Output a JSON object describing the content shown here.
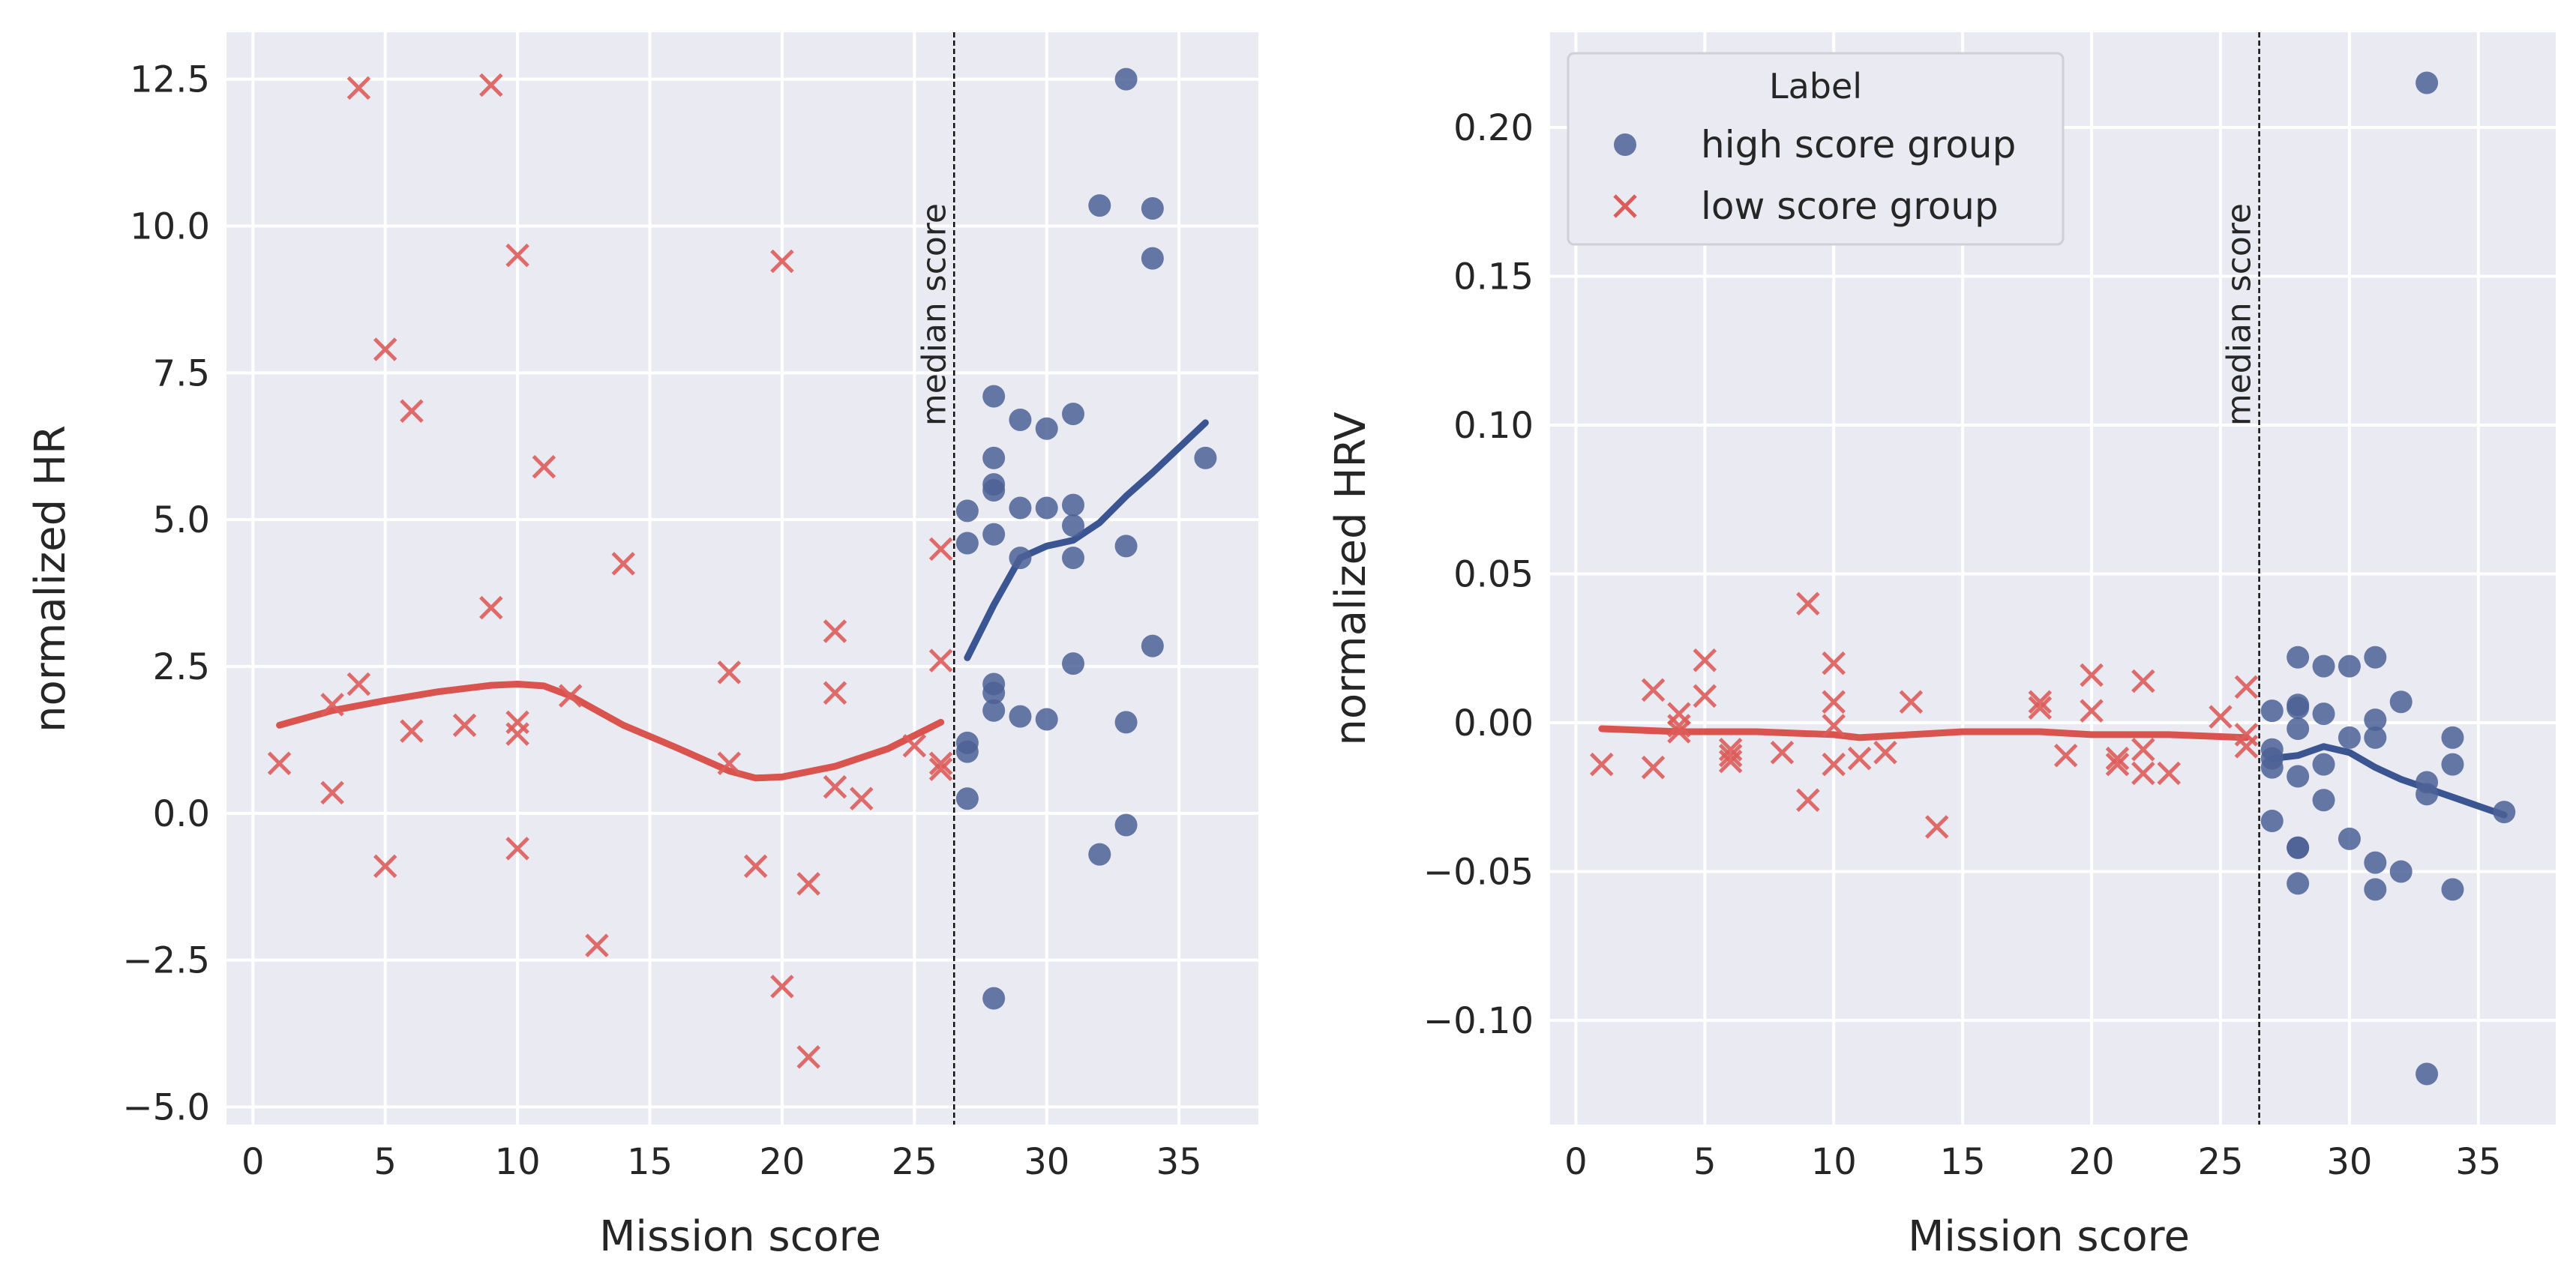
{
  "colors": {
    "background": "#eaeaf2",
    "grid": "#ffffff",
    "high": "#4c6296",
    "low": "#dd5c5a",
    "high_line": "#3a5592",
    "low_line": "#d9534f",
    "text": "#262626"
  },
  "legend": {
    "title": "Label",
    "entries": [
      {
        "name": "high score group",
        "marker": "circle"
      },
      {
        "name": "low score group",
        "marker": "x"
      }
    ]
  },
  "chart_data": [
    {
      "type": "scatter",
      "xlabel": "Mission score",
      "ylabel": "normalized HR",
      "xlim": [
        -1,
        38
      ],
      "ylim": [
        -5.3,
        13.3
      ],
      "xticks": [
        0,
        5,
        10,
        15,
        20,
        25,
        30,
        35
      ],
      "xtick_labels": [
        "0",
        "5",
        "10",
        "15",
        "20",
        "25",
        "30",
        "35"
      ],
      "yticks": [
        -5,
        -2.5,
        0,
        2.5,
        5,
        7.5,
        10,
        12.5
      ],
      "ytick_labels": [
        "−5.0",
        "−2.5",
        "0.0",
        "2.5",
        "5.0",
        "7.5",
        "10.0",
        "12.5"
      ],
      "median": {
        "x": 26.5,
        "label": "median score"
      },
      "series": [
        {
          "name": "low score group",
          "marker": "x",
          "points": [
            [
              1,
              0.85
            ],
            [
              3,
              0.35
            ],
            [
              3,
              1.85
            ],
            [
              4,
              2.2
            ],
            [
              4,
              12.35
            ],
            [
              5,
              7.9
            ],
            [
              5,
              -0.9
            ],
            [
              6,
              6.85
            ],
            [
              6,
              1.4
            ],
            [
              8,
              1.5
            ],
            [
              9,
              12.4
            ],
            [
              9,
              3.5
            ],
            [
              10,
              9.5
            ],
            [
              10,
              1.55
            ],
            [
              10,
              1.35
            ],
            [
              10,
              -0.6
            ],
            [
              11,
              5.9
            ],
            [
              12,
              2.0
            ],
            [
              13,
              -2.25
            ],
            [
              14,
              4.25
            ],
            [
              18,
              2.4
            ],
            [
              18,
              0.85
            ],
            [
              19,
              -0.9
            ],
            [
              20,
              9.4
            ],
            [
              20,
              -2.95
            ],
            [
              21,
              -1.2
            ],
            [
              21,
              -4.15
            ],
            [
              22,
              3.1
            ],
            [
              22,
              2.05
            ],
            [
              22,
              0.45
            ],
            [
              23,
              0.25
            ],
            [
              25,
              1.15
            ],
            [
              26,
              4.5
            ],
            [
              26,
              2.6
            ],
            [
              26,
              0.85
            ],
            [
              26,
              0.75
            ]
          ]
        },
        {
          "name": "high score group",
          "marker": "circle",
          "points": [
            [
              27,
              5.15
            ],
            [
              27,
              4.6
            ],
            [
              27,
              1.2
            ],
            [
              27,
              1.05
            ],
            [
              27,
              0.25
            ],
            [
              28,
              7.1
            ],
            [
              28,
              6.05
            ],
            [
              28,
              5.6
            ],
            [
              28,
              5.5
            ],
            [
              28,
              4.75
            ],
            [
              28,
              2.2
            ],
            [
              28,
              2.05
            ],
            [
              28,
              1.75
            ],
            [
              28,
              -3.15
            ],
            [
              29,
              6.7
            ],
            [
              29,
              5.2
            ],
            [
              29,
              4.35
            ],
            [
              29,
              1.65
            ],
            [
              30,
              6.55
            ],
            [
              30,
              5.2
            ],
            [
              30,
              1.6
            ],
            [
              31,
              6.8
            ],
            [
              31,
              5.25
            ],
            [
              31,
              4.9
            ],
            [
              31,
              4.35
            ],
            [
              31,
              2.55
            ],
            [
              32,
              10.35
            ],
            [
              32,
              -0.7
            ],
            [
              33,
              12.5
            ],
            [
              33,
              4.55
            ],
            [
              33,
              1.55
            ],
            [
              33,
              -0.2
            ],
            [
              34,
              10.3
            ],
            [
              34,
              9.45
            ],
            [
              34,
              2.85
            ],
            [
              36,
              6.05
            ]
          ]
        }
      ],
      "trend_lines": [
        {
          "name": "low score group",
          "points": [
            [
              1,
              1.5
            ],
            [
              3,
              1.75
            ],
            [
              5,
              1.92
            ],
            [
              7,
              2.07
            ],
            [
              9,
              2.18
            ],
            [
              10,
              2.2
            ],
            [
              11,
              2.17
            ],
            [
              12,
              2.0
            ],
            [
              14,
              1.5
            ],
            [
              16,
              1.12
            ],
            [
              18,
              0.72
            ],
            [
              19,
              0.6
            ],
            [
              20,
              0.62
            ],
            [
              22,
              0.8
            ],
            [
              24,
              1.1
            ],
            [
              26,
              1.55
            ]
          ]
        },
        {
          "name": "high score group",
          "points": [
            [
              27,
              2.65
            ],
            [
              28,
              3.55
            ],
            [
              29,
              4.35
            ],
            [
              30,
              4.55
            ],
            [
              31,
              4.65
            ],
            [
              32,
              4.95
            ],
            [
              33,
              5.4
            ],
            [
              34,
              5.8
            ],
            [
              36,
              6.65
            ]
          ]
        }
      ]
    },
    {
      "type": "scatter",
      "xlabel": "Mission score",
      "ylabel": "normalized HRV",
      "xlim": [
        -1,
        38
      ],
      "ylim": [
        -0.135,
        0.232
      ],
      "xticks": [
        0,
        5,
        10,
        15,
        20,
        25,
        30,
        35
      ],
      "xtick_labels": [
        "0",
        "5",
        "10",
        "15",
        "20",
        "25",
        "30",
        "35"
      ],
      "yticks": [
        -0.1,
        -0.05,
        0,
        0.05,
        0.1,
        0.15,
        0.2
      ],
      "ytick_labels": [
        "−0.10",
        "−0.05",
        "0.00",
        "0.05",
        "0.10",
        "0.15",
        "0.20"
      ],
      "median": {
        "x": 26.5,
        "label": "median score"
      },
      "series": [
        {
          "name": "low score group",
          "marker": "x",
          "points": [
            [
              1,
              -0.014
            ],
            [
              3,
              0.011
            ],
            [
              3,
              -0.015
            ],
            [
              4,
              0.003
            ],
            [
              4,
              -0.001
            ],
            [
              4,
              -0.003
            ],
            [
              5,
              0.021
            ],
            [
              5,
              0.009
            ],
            [
              6,
              -0.009
            ],
            [
              6,
              -0.013
            ],
            [
              6,
              -0.011
            ],
            [
              8,
              -0.01
            ],
            [
              9,
              0.04
            ],
            [
              9,
              -0.026
            ],
            [
              10,
              0.02
            ],
            [
              10,
              0.007
            ],
            [
              10,
              -0.001
            ],
            [
              10,
              -0.014
            ],
            [
              11,
              -0.012
            ],
            [
              12,
              -0.01
            ],
            [
              13,
              0.007
            ],
            [
              14,
              -0.035
            ],
            [
              18,
              0.007
            ],
            [
              18,
              0.005
            ],
            [
              19,
              -0.011
            ],
            [
              20,
              0.016
            ],
            [
              20,
              0.004
            ],
            [
              21,
              -0.012
            ],
            [
              21,
              -0.014
            ],
            [
              22,
              0.014
            ],
            [
              22,
              -0.009
            ],
            [
              22,
              -0.017
            ],
            [
              23,
              -0.017
            ],
            [
              25,
              0.002
            ],
            [
              26,
              0.012
            ],
            [
              26,
              -0.004
            ],
            [
              26,
              -0.008
            ]
          ]
        },
        {
          "name": "high score group",
          "marker": "circle",
          "points": [
            [
              27,
              0.004
            ],
            [
              27,
              -0.009
            ],
            [
              27,
              -0.012
            ],
            [
              27,
              -0.015
            ],
            [
              27,
              -0.033
            ],
            [
              28,
              0.022
            ],
            [
              28,
              0.006
            ],
            [
              28,
              0.005
            ],
            [
              28,
              -0.002
            ],
            [
              28,
              -0.018
            ],
            [
              28,
              -0.042
            ],
            [
              28,
              -0.042
            ],
            [
              28,
              -0.054
            ],
            [
              29,
              0.019
            ],
            [
              29,
              0.003
            ],
            [
              29,
              -0.014
            ],
            [
              29,
              -0.026
            ],
            [
              30,
              0.019
            ],
            [
              30,
              -0.005
            ],
            [
              30,
              -0.039
            ],
            [
              31,
              0.022
            ],
            [
              31,
              0.001
            ],
            [
              31,
              -0.005
            ],
            [
              31,
              -0.047
            ],
            [
              31,
              -0.056
            ],
            [
              32,
              0.007
            ],
            [
              32,
              -0.05
            ],
            [
              33,
              0.215
            ],
            [
              33,
              -0.02
            ],
            [
              33,
              -0.024
            ],
            [
              33,
              -0.118
            ],
            [
              34,
              -0.005
            ],
            [
              34,
              -0.014
            ],
            [
              34,
              -0.056
            ],
            [
              36,
              -0.03
            ]
          ]
        }
      ],
      "trend_lines": [
        {
          "name": "low score group",
          "points": [
            [
              1,
              -0.002
            ],
            [
              4,
              -0.003
            ],
            [
              7,
              -0.003
            ],
            [
              10,
              -0.004
            ],
            [
              11,
              -0.005
            ],
            [
              13,
              -0.004
            ],
            [
              15,
              -0.003
            ],
            [
              18,
              -0.003
            ],
            [
              20,
              -0.004
            ],
            [
              23,
              -0.004
            ],
            [
              26,
              -0.005
            ]
          ]
        },
        {
          "name": "high score group",
          "points": [
            [
              27,
              -0.012
            ],
            [
              28,
              -0.011
            ],
            [
              29,
              -0.008
            ],
            [
              30,
              -0.01
            ],
            [
              31,
              -0.015
            ],
            [
              32,
              -0.019
            ],
            [
              33,
              -0.022
            ],
            [
              34,
              -0.025
            ],
            [
              36,
              -0.031
            ]
          ]
        }
      ]
    }
  ]
}
